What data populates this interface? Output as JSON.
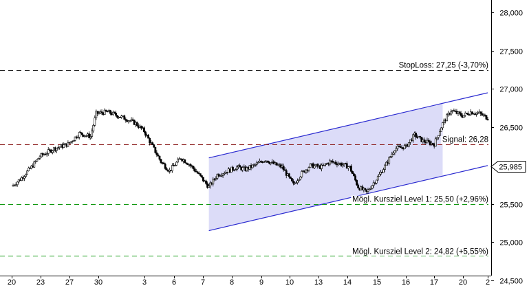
{
  "chart_data": {
    "type": "candlestick",
    "title": "",
    "xlabel": "",
    "ylabel": "",
    "ylim": [
      24.5,
      28.0
    ],
    "grid": false,
    "y_ticks": [
      "28,000",
      "27,500",
      "27,000",
      "26,500",
      "26,000",
      "25,500",
      "25,000",
      "24,500"
    ],
    "x_ticks": [
      "20",
      "23",
      "27",
      "30",
      "3",
      "6",
      "7",
      "8",
      "9",
      "10",
      "13",
      "14",
      "15",
      "16",
      "17",
      "20",
      "2"
    ],
    "price_series": [
      {
        "x": 0.0,
        "y": 25.73
      },
      {
        "x": 0.3,
        "y": 25.82
      },
      {
        "x": 0.7,
        "y": 25.98
      },
      {
        "x": 1.0,
        "y": 26.12
      },
      {
        "x": 1.5,
        "y": 26.22
      },
      {
        "x": 2.0,
        "y": 26.28
      },
      {
        "x": 2.4,
        "y": 26.42
      },
      {
        "x": 2.8,
        "y": 26.38
      },
      {
        "x": 3.0,
        "y": 26.68
      },
      {
        "x": 3.4,
        "y": 26.7
      },
      {
        "x": 3.7,
        "y": 26.66
      },
      {
        "x": 4.0,
        "y": 26.62
      },
      {
        "x": 4.4,
        "y": 26.55
      },
      {
        "x": 4.7,
        "y": 26.45
      },
      {
        "x": 5.0,
        "y": 26.25
      },
      {
        "x": 5.3,
        "y": 26.05
      },
      {
        "x": 5.6,
        "y": 25.93
      },
      {
        "x": 6.0,
        "y": 26.1
      },
      {
        "x": 6.3,
        "y": 26.02
      },
      {
        "x": 6.6,
        "y": 25.9
      },
      {
        "x": 7.0,
        "y": 25.72
      },
      {
        "x": 7.3,
        "y": 25.88
      },
      {
        "x": 7.6,
        "y": 25.92
      },
      {
        "x": 8.0,
        "y": 25.98
      },
      {
        "x": 8.3,
        "y": 25.95
      },
      {
        "x": 8.6,
        "y": 26.0
      },
      {
        "x": 9.0,
        "y": 26.08
      },
      {
        "x": 9.3,
        "y": 26.02
      },
      {
        "x": 9.6,
        "y": 25.98
      },
      {
        "x": 10.0,
        "y": 25.75
      },
      {
        "x": 10.3,
        "y": 25.9
      },
      {
        "x": 10.6,
        "y": 26.0
      },
      {
        "x": 11.0,
        "y": 25.98
      },
      {
        "x": 11.3,
        "y": 26.05
      },
      {
        "x": 11.6,
        "y": 26.03
      },
      {
        "x": 12.0,
        "y": 25.98
      },
      {
        "x": 12.3,
        "y": 25.72
      },
      {
        "x": 12.6,
        "y": 25.65
      },
      {
        "x": 13.0,
        "y": 25.85
      },
      {
        "x": 13.3,
        "y": 26.02
      },
      {
        "x": 13.6,
        "y": 26.22
      },
      {
        "x": 14.0,
        "y": 26.25
      },
      {
        "x": 14.3,
        "y": 26.4
      },
      {
        "x": 14.6,
        "y": 26.32
      },
      {
        "x": 15.0,
        "y": 26.28
      },
      {
        "x": 15.3,
        "y": 26.55
      },
      {
        "x": 15.6,
        "y": 26.72
      },
      {
        "x": 16.0,
        "y": 26.65
      },
      {
        "x": 16.3,
        "y": 26.7
      },
      {
        "x": 16.6,
        "y": 26.68
      },
      {
        "x": 16.9,
        "y": 26.62
      }
    ],
    "levels": [
      {
        "name": "StopLoss",
        "value": 27.25,
        "color": "#202020",
        "label": "StopLoss: 27,25  (-3,70%)"
      },
      {
        "name": "Signal",
        "value": 26.28,
        "color": "#8b1a1a",
        "label": "Signal: 26,28"
      },
      {
        "name": "Kursziel 1",
        "value": 25.5,
        "color": "#119911",
        "label": "Mögl. Kursziel Level 1: 25,50  (+2,96%)"
      },
      {
        "name": "Kursziel 2",
        "value": 24.82,
        "color": "#119911",
        "label": "Mögl. Kursziel Level 2: 24,82  (+5,55%)"
      }
    ],
    "channel": {
      "upper": [
        {
          "x": 7.0,
          "y": 26.1
        },
        {
          "x": 16.9,
          "y": 26.95
        }
      ],
      "lower": [
        {
          "x": 7.0,
          "y": 25.15
        },
        {
          "x": 16.9,
          "y": 26.0
        }
      ],
      "fill_until_x": 15.3,
      "line_color": "#2a2ad0",
      "fill_color": "#dcdcf8"
    },
    "current_price": {
      "value": 25.985,
      "label": "25,985"
    }
  }
}
